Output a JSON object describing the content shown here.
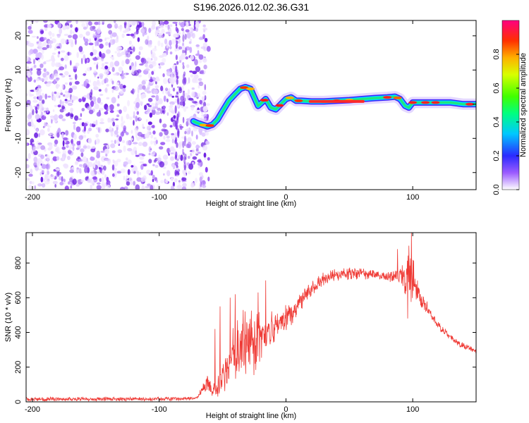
{
  "title": "S196.2026.012.02.36.G31",
  "chart_data": [
    {
      "type": "heatmap",
      "title": "S196.2026.012.02.36.G31",
      "xlabel": "Height of straight line (km)",
      "ylabel": "Frequency (Hz)",
      "xlim": [
        -205,
        150
      ],
      "ylim": [
        -25,
        24.5
      ],
      "xticks": [
        -200,
        -100,
        0,
        100
      ],
      "yticks": [
        -20,
        -10,
        0,
        10,
        20
      ],
      "noise_region_x": [
        -205,
        -72
      ],
      "ridge": {
        "x": [
          -73,
          -70,
          -66,
          -62,
          -58,
          -54,
          -50,
          -45,
          -40,
          -36,
          -32,
          -28,
          -25,
          -22,
          -19,
          -16,
          -12,
          -8,
          -4,
          0,
          4,
          8,
          12,
          20,
          30,
          40,
          50,
          60,
          70,
          80,
          86,
          90,
          94,
          97,
          100,
          110,
          120,
          130,
          140,
          150
        ],
        "y": [
          -5,
          -5.5,
          -6,
          -6.5,
          -6,
          -4.5,
          -2,
          1,
          3,
          4.5,
          5,
          4.5,
          2,
          -0.5,
          0.5,
          1.5,
          -1,
          -1.5,
          0,
          1.5,
          2,
          1,
          1,
          0.8,
          0.8,
          1,
          1.2,
          1.5,
          1.8,
          2,
          2.2,
          1.5,
          -0.5,
          -1,
          0.5,
          0.5,
          0.5,
          0.5,
          0,
          0
        ]
      },
      "colorbar": {
        "label": "Normalized spectral amplitude",
        "range": [
          0,
          1
        ],
        "ticks": [
          "0.0",
          "0.2",
          "0.4",
          "0.6",
          "0.8"
        ]
      }
    },
    {
      "type": "line",
      "xlabel": "Height of straight line (km)",
      "ylabel": "SNR (10 * v/v)",
      "xlim": [
        -205,
        150
      ],
      "ylim": [
        0,
        975
      ],
      "xticks": [
        -200,
        -100,
        0,
        100
      ],
      "yticks": [
        0,
        200,
        400,
        600,
        800
      ],
      "series": [
        {
          "name": "SNR",
          "color": "#ef3b36",
          "envelope": {
            "x": [
              -205,
              -70,
              -62,
              -58,
              -55,
              -50,
              -45,
              -40,
              -35,
              -30,
              -25,
              -20,
              -15,
              -10,
              -5,
              0,
              5,
              10,
              15,
              20,
              25,
              30,
              35,
              40,
              50,
              60,
              70,
              80,
              90,
              95,
              100,
              105,
              110,
              115,
              120,
              130,
              140,
              150
            ],
            "mid": [
              15,
              18,
              120,
              60,
              70,
              150,
              200,
              280,
              320,
              330,
              340,
              350,
              380,
              420,
              450,
              480,
              520,
              560,
              620,
              660,
              690,
              710,
              720,
              730,
              740,
              740,
              730,
              720,
              720,
              730,
              700,
              620,
              560,
              500,
              440,
              370,
              320,
              290
            ],
            "amp": [
              12,
              12,
              60,
              40,
              50,
              110,
              150,
              200,
              230,
              220,
              200,
              170,
              130,
              110,
              90,
              80,
              70,
              60,
              55,
              50,
              45,
              40,
              38,
              38,
              36,
              34,
              32,
              30,
              45,
              120,
              140,
              60,
              40,
              30,
              25,
              20,
              20,
              20
            ]
          }
        }
      ],
      "spikes": [
        {
          "x": 99,
          "y": 975
        },
        {
          "x": 97,
          "y": 900
        },
        {
          "x": 96,
          "y": 480
        },
        {
          "x": 88,
          "y": 880
        },
        {
          "x": -40,
          "y": 620
        },
        {
          "x": -44,
          "y": 600
        },
        {
          "x": -52,
          "y": 550
        },
        {
          "x": -56,
          "y": 420
        },
        {
          "x": -16,
          "y": 700
        },
        {
          "x": -22,
          "y": 630
        }
      ]
    }
  ]
}
